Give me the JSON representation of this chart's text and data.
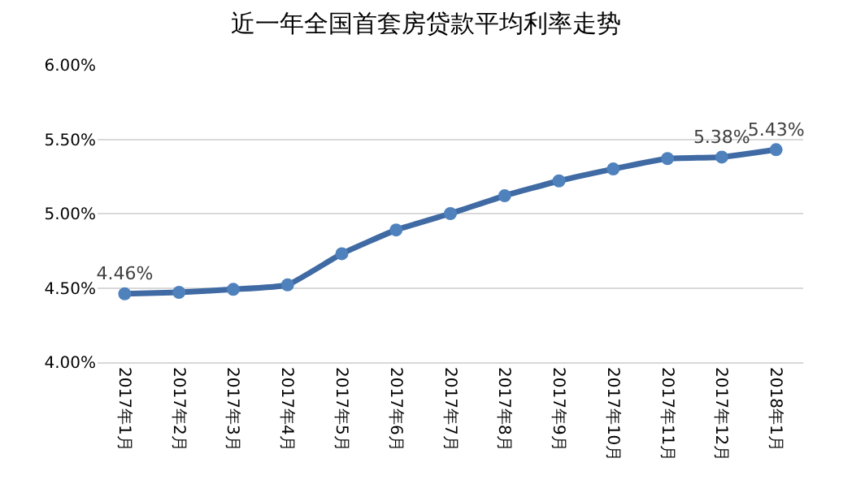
{
  "chart_data": {
    "type": "line",
    "title": "近一年全国首套房贷款平均利率走势",
    "categories": [
      "2017年1月",
      "2017年2月",
      "2017年3月",
      "2017年4月",
      "2017年5月",
      "2017年6月",
      "2017年7月",
      "2017年8月",
      "2017年9月",
      "2017年10月",
      "2017年11月",
      "2017年12月",
      "2018年1月"
    ],
    "series": [
      {
        "color": "#3f6aa3",
        "values": [
          4.46,
          4.47,
          4.49,
          4.52,
          4.73,
          4.89,
          5.0,
          5.12,
          5.22,
          5.3,
          5.37,
          5.38,
          5.43
        ],
        "value_labels": [
          "4.46%",
          null,
          null,
          null,
          null,
          null,
          null,
          null,
          null,
          null,
          null,
          "5.38%",
          "5.43%"
        ]
      }
    ],
    "ylim": [
      4.0,
      6.0
    ],
    "yticks": [
      {
        "value": 4.0,
        "label": "4.00%"
      },
      {
        "value": 4.5,
        "label": "4.50%"
      },
      {
        "value": 5.0,
        "label": "5.00%"
      },
      {
        "value": 5.5,
        "label": "5.50%"
      },
      {
        "value": 6.0,
        "label": "6.00%"
      }
    ],
    "grid": "y",
    "marker": "circle",
    "line_style": "solid"
  }
}
